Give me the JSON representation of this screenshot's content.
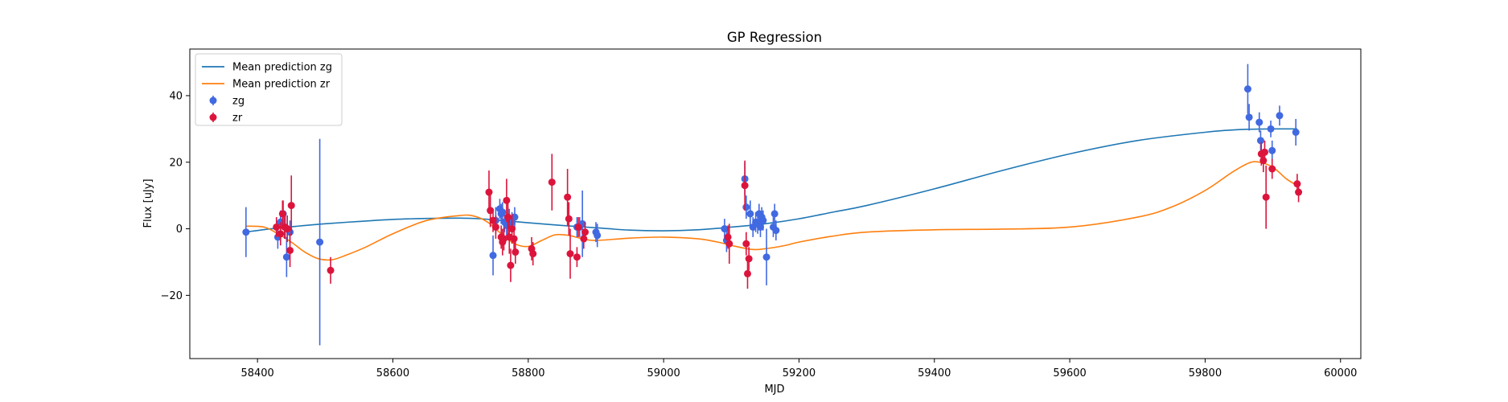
{
  "chart_data": {
    "type": "scatter",
    "title": "GP Regression",
    "xlabel": "MJD",
    "ylabel": "Flux [uJy]",
    "xlim": [
      58300,
      60030
    ],
    "ylim": [
      -39,
      54
    ],
    "xticks": [
      58400,
      58600,
      58800,
      59000,
      59200,
      59400,
      59600,
      59800,
      60000
    ],
    "yticks": [
      -20,
      0,
      20,
      40
    ],
    "legend_position": "top-left",
    "lines": [
      {
        "name": "Mean prediction zg",
        "color": "#1f77b4",
        "x": [
          58382,
          58420,
          58460,
          58500,
          58550,
          58600,
          58650,
          58700,
          58730,
          58760,
          58800,
          58850,
          58900,
          58950,
          59000,
          59050,
          59100,
          59150,
          59200,
          59250,
          59300,
          59400,
          59500,
          59600,
          59700,
          59800,
          59850,
          59900,
          59936
        ],
        "y": [
          -1,
          0,
          0.8,
          1.5,
          2.2,
          2.8,
          3.1,
          3.2,
          3,
          2.5,
          1.8,
          1,
          0.3,
          -0.4,
          -0.6,
          -0.3,
          0.5,
          1.5,
          3,
          5,
          7,
          12,
          17.5,
          22.5,
          26.5,
          29,
          29.8,
          30,
          30
        ]
      },
      {
        "name": "Mean prediction zr",
        "color": "#ff7f0e",
        "x": [
          58382,
          58410,
          58430,
          58450,
          58470,
          58490,
          58510,
          58530,
          58560,
          58600,
          58650,
          58700,
          58720,
          58740,
          58760,
          58780,
          58800,
          58820,
          58840,
          58860,
          58880,
          58900,
          58950,
          59000,
          59050,
          59080,
          59100,
          59130,
          59150,
          59180,
          59200,
          59250,
          59300,
          59400,
          59500,
          59600,
          59700,
          59750,
          59800,
          59840,
          59865,
          59880,
          59900,
          59920,
          59936
        ],
        "y": [
          0.8,
          0.5,
          -1.5,
          -4,
          -7,
          -9,
          -9.3,
          -8,
          -5.5,
          -1.5,
          2.5,
          4,
          3.8,
          2,
          -1.5,
          -4.5,
          -5.3,
          -3.5,
          -1.8,
          -2,
          -3,
          -3.5,
          -2.8,
          -2.5,
          -3,
          -4,
          -5,
          -6.2,
          -6,
          -5,
          -4,
          -2.2,
          -1,
          -0.3,
          -0.1,
          0.5,
          3.5,
          6.5,
          11.5,
          17,
          19.8,
          20,
          18.5,
          15,
          13
        ]
      }
    ],
    "series": [
      {
        "name": "zg",
        "color": "#4169e1",
        "points": [
          [
            58383,
            -1,
            7.5
          ],
          [
            58430,
            -2.5,
            3.5
          ],
          [
            58434,
            2,
            3.5
          ],
          [
            58438,
            4.5,
            4
          ],
          [
            58441,
            0.5,
            3.5
          ],
          [
            58443,
            -8.5,
            6
          ],
          [
            58448,
            -1,
            3.5
          ],
          [
            58492,
            -4,
            31
          ],
          [
            58748,
            -8,
            6
          ],
          [
            58752,
            2.5,
            4
          ],
          [
            58758,
            6,
            3
          ],
          [
            58760,
            4.5,
            3
          ],
          [
            58762,
            5,
            3
          ],
          [
            58765,
            2,
            3
          ],
          [
            58768,
            1,
            3
          ],
          [
            58772,
            3,
            3
          ],
          [
            58776,
            2,
            3
          ],
          [
            58780,
            3.5,
            3
          ],
          [
            58872,
            0.5,
            3
          ],
          [
            58876,
            0.5,
            3
          ],
          [
            58880,
            1.5,
            10
          ],
          [
            58900,
            -1,
            3
          ],
          [
            58902,
            -2,
            3.5
          ],
          [
            59090,
            0,
            3
          ],
          [
            59093,
            -3.5,
            3.5
          ],
          [
            59120,
            15,
            5
          ],
          [
            59122,
            6.5,
            3.5
          ],
          [
            59128,
            4.5,
            4
          ],
          [
            59132,
            0.5,
            3
          ],
          [
            59136,
            2,
            3
          ],
          [
            59139,
            1.5,
            3
          ],
          [
            59141,
            4.5,
            3
          ],
          [
            59143,
            0.5,
            3
          ],
          [
            59145,
            3.5,
            3
          ],
          [
            59147,
            2.5,
            3
          ],
          [
            59152,
            -8.5,
            8.5
          ],
          [
            59162,
            0.5,
            3
          ],
          [
            59164,
            4.5,
            3
          ],
          [
            59166,
            -0.5,
            3
          ],
          [
            59863,
            42,
            7.5
          ],
          [
            59865,
            33.5,
            4
          ],
          [
            59880,
            32,
            3
          ],
          [
            59882,
            26.5,
            3
          ],
          [
            59897,
            30,
            2.5
          ],
          [
            59899,
            23.5,
            3
          ],
          [
            59910,
            34,
            3
          ],
          [
            59934,
            29,
            4
          ]
        ]
      },
      {
        "name": "zr",
        "color": "#dc143c",
        "points": [
          [
            58428,
            0.5,
            3
          ],
          [
            58434,
            -1.5,
            3.5
          ],
          [
            58437,
            4.5,
            4
          ],
          [
            58440,
            0.5,
            3.5
          ],
          [
            58444,
            0,
            4
          ],
          [
            58448,
            -6.5,
            5
          ],
          [
            58450,
            7,
            9
          ],
          [
            58508,
            -12.5,
            4
          ],
          [
            58742,
            11,
            6.5
          ],
          [
            58744,
            5.5,
            5
          ],
          [
            58748,
            2.5,
            3.5
          ],
          [
            58752,
            0.5,
            3.5
          ],
          [
            58760,
            -2.5,
            3.5
          ],
          [
            58762,
            -4,
            4
          ],
          [
            58764,
            -3,
            3.5
          ],
          [
            58768,
            8.5,
            6.5
          ],
          [
            58770,
            3.5,
            6
          ],
          [
            58772,
            -2.5,
            5
          ],
          [
            58774,
            -11,
            5
          ],
          [
            58776,
            0,
            4.5
          ],
          [
            58779,
            -3,
            3.5
          ],
          [
            58781,
            -7,
            3.5
          ],
          [
            58805,
            -6,
            3.5
          ],
          [
            58807,
            -7.5,
            3.5
          ],
          [
            58835,
            14,
            8.5
          ],
          [
            58858,
            9.5,
            8.5
          ],
          [
            58860,
            3,
            5
          ],
          [
            58862,
            -7.5,
            7.5
          ],
          [
            58872,
            -8.5,
            3
          ],
          [
            58874,
            0.5,
            3
          ],
          [
            58882,
            -3,
            3
          ],
          [
            58884,
            -1,
            3
          ],
          [
            59095,
            -2.5,
            3.5
          ],
          [
            59097,
            -4.5,
            6
          ],
          [
            59120,
            13,
            7.5
          ],
          [
            59122,
            -4.5,
            3.5
          ],
          [
            59124,
            -13.5,
            4.5
          ],
          [
            59126,
            -9,
            3.5
          ],
          [
            59883,
            22.5,
            3.5
          ],
          [
            59886,
            20.5,
            3.5
          ],
          [
            59888,
            23,
            3.5
          ],
          [
            59890,
            9.5,
            9.5
          ],
          [
            59899,
            18,
            3
          ],
          [
            59936,
            13.5,
            3
          ],
          [
            59938,
            11,
            3
          ]
        ]
      }
    ]
  }
}
